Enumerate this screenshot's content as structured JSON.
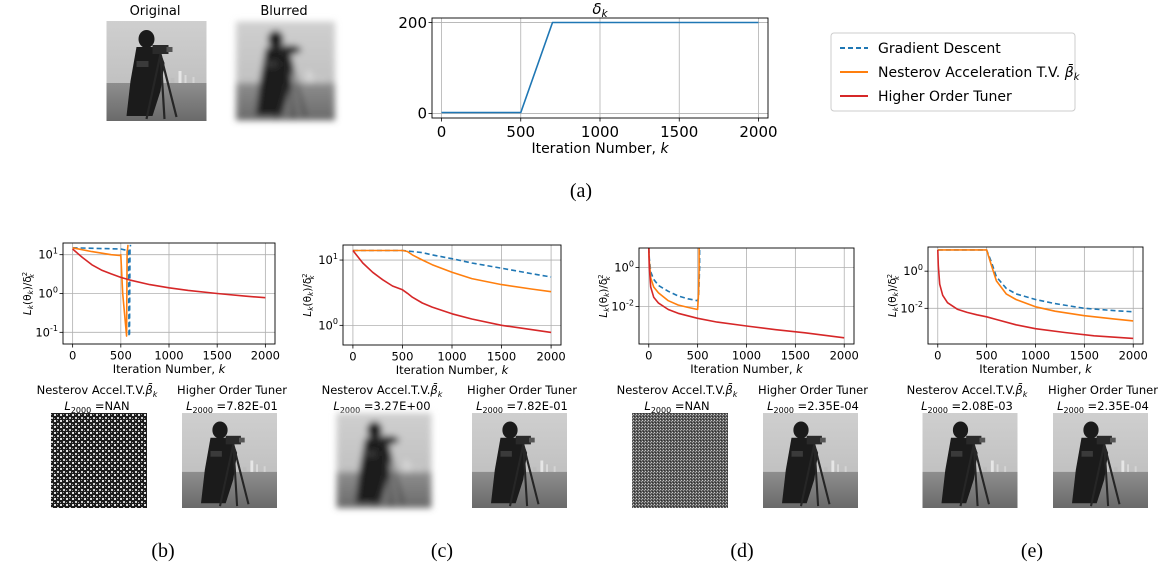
{
  "colors": {
    "gradient_descent": "#1f77b4",
    "nesterov": "#ff7f0e",
    "higher_order": "#d62728",
    "grid": "#b0b0b0",
    "axis": "#000000"
  },
  "top": {
    "original_title": "Original",
    "blurred_title": "Blurred",
    "panel_label": "(a)"
  },
  "legend": {
    "entries": [
      {
        "name": "Gradient Descent",
        "color": "#1f77b4",
        "style": "dashed"
      },
      {
        "name": "Nesterov Acceleration T.V.",
        "symbol": "β̄",
        "subscript": "k",
        "color": "#ff7f0e",
        "style": "solid"
      },
      {
        "name": "Higher Order Tuner",
        "color": "#d62728",
        "style": "solid"
      }
    ]
  },
  "panels": [
    {
      "label": "(b)",
      "left_title": "Nesterov Accel.T.V.",
      "left_L": "=NAN",
      "right_title": "Higher Order Tuner",
      "right_L": "=7.82E-01",
      "left_image": "noise"
    },
    {
      "label": "(c)",
      "left_title": "Nesterov Accel.T.V.",
      "left_L": "=3.27E+00",
      "right_title": "Higher Order Tuner",
      "right_L": "=7.82E-01",
      "left_image": "blurred"
    },
    {
      "label": "(d)",
      "left_title": "Nesterov Accel.T.V.",
      "left_L": "=NAN",
      "right_title": "Higher Order Tuner",
      "right_L": "=2.35E-04",
      "left_image": "noise"
    },
    {
      "label": "(e)",
      "left_title": "Nesterov Accel.T.V.",
      "left_L": "=2.08E-03",
      "right_title": "Higher Order Tuner",
      "right_L": "=2.35E-04",
      "left_image": "sharp"
    }
  ],
  "chart_data": [
    {
      "id": "a",
      "type": "line",
      "title": "δ",
      "title_sub": "k",
      "xlabel": "Iteration Number, ",
      "xlabel_var": "k",
      "xlim": [
        -60,
        2060
      ],
      "ylim": [
        -10,
        210
      ],
      "xticks": [
        0,
        500,
        1000,
        1500,
        2000
      ],
      "yticks": [
        0,
        200
      ],
      "log_y": false,
      "grid": true,
      "series": [
        {
          "x": [
            0,
            500,
            700,
            2000
          ],
          "y": [
            2,
            2,
            200,
            200
          ],
          "color": "#1f77b4",
          "style": "solid"
        }
      ]
    },
    {
      "id": "b",
      "type": "line",
      "xlabel": "Iteration Number, ",
      "xlabel_var": "k",
      "xlim": [
        -100,
        2100
      ],
      "ylim": [
        0.05,
        20
      ],
      "log_y": true,
      "xticks": [
        0,
        500,
        1000,
        1500,
        2000
      ],
      "yticks": [
        {
          "v": 10,
          "e": "1"
        },
        {
          "v": 1,
          "e": "0"
        },
        {
          "v": 0.1,
          "e": "-1"
        }
      ],
      "grid": true,
      "series": [
        {
          "name": "Gradient Descent",
          "color": "#1f77b4",
          "style": "dashed",
          "x": [
            0,
            500,
            560,
            580,
            585,
            590,
            595,
            600
          ],
          "y": [
            15,
            14,
            13,
            13,
            0.08,
            0.08,
            13,
            18
          ]
        },
        {
          "name": "Nesterov Acceleration T.V.",
          "color": "#ff7f0e",
          "style": "solid",
          "x": [
            0,
            200,
            400,
            490,
            500,
            520,
            560,
            565,
            570,
            575
          ],
          "y": [
            15,
            12,
            10,
            9.5,
            10,
            1,
            0.08,
            12,
            14,
            18
          ]
        },
        {
          "name": "Higher Order Tuner",
          "color": "#d62728",
          "style": "solid",
          "x": [
            0,
            100,
            200,
            300,
            400,
            500,
            600,
            800,
            1000,
            1200,
            1500,
            1800,
            2000
          ],
          "y": [
            14,
            8.5,
            5.5,
            4,
            3.2,
            2.6,
            2.2,
            1.7,
            1.4,
            1.2,
            1,
            0.85,
            0.78
          ]
        }
      ]
    },
    {
      "id": "c",
      "type": "line",
      "xlabel": "Iteration Number, ",
      "xlabel_var": "k",
      "xlim": [
        -100,
        2100
      ],
      "ylim": [
        0.5,
        17
      ],
      "log_y": true,
      "xticks": [
        0,
        500,
        1000,
        1500,
        2000
      ],
      "yticks": [
        {
          "v": 10,
          "e": "1"
        },
        {
          "v": 1,
          "e": "0"
        }
      ],
      "grid": true,
      "series": [
        {
          "name": "Gradient Descent",
          "color": "#1f77b4",
          "style": "dashed",
          "x": [
            0,
            200,
            400,
            500,
            600,
            700,
            800,
            1000,
            1200,
            1500,
            1800,
            2000
          ],
          "y": [
            14,
            14,
            14,
            14,
            13.5,
            13,
            12,
            10.5,
            9,
            7.5,
            6.2,
            5.5
          ]
        },
        {
          "name": "Nesterov Acceleration T.V.",
          "color": "#ff7f0e",
          "style": "solid",
          "x": [
            0,
            200,
            400,
            500,
            550,
            600,
            700,
            800,
            1000,
            1200,
            1500,
            1800,
            2000
          ],
          "y": [
            14,
            14,
            14,
            14,
            13.5,
            12,
            10,
            8.5,
            6.5,
            5.2,
            4.2,
            3.6,
            3.27
          ]
        },
        {
          "name": "Higher Order Tuner",
          "color": "#d62728",
          "style": "solid",
          "x": [
            0,
            100,
            200,
            300,
            400,
            500,
            550,
            600,
            700,
            800,
            1000,
            1200,
            1500,
            1800,
            2000
          ],
          "y": [
            14,
            9,
            6.5,
            5,
            4,
            3.5,
            3.1,
            2.7,
            2.2,
            1.9,
            1.5,
            1.25,
            1,
            0.86,
            0.78
          ]
        }
      ]
    },
    {
      "id": "d",
      "type": "line",
      "xlabel": "Iteration Number, ",
      "xlabel_var": "k",
      "xlim": [
        -100,
        2100
      ],
      "ylim": [
        0.00012,
        10
      ],
      "log_y": true,
      "xticks": [
        0,
        500,
        1000,
        1500,
        2000
      ],
      "yticks": [
        {
          "v": 1,
          "e": "0"
        },
        {
          "v": 0.01,
          "e": "-2"
        }
      ],
      "grid": true,
      "series": [
        {
          "name": "Gradient Descent",
          "color": "#1f77b4",
          "style": "dashed",
          "x": [
            0,
            5,
            20,
            50,
            100,
            200,
            300,
            400,
            500,
            510,
            520,
            520
          ],
          "y": [
            10,
            3,
            0.6,
            0.25,
            0.12,
            0.06,
            0.035,
            0.025,
            0.02,
            0.03,
            1,
            10
          ]
        },
        {
          "name": "Nesterov Acceleration T.V.",
          "color": "#ff7f0e",
          "style": "solid",
          "x": [
            0,
            5,
            20,
            50,
            100,
            200,
            300,
            400,
            500,
            510,
            515,
            515
          ],
          "y": [
            10,
            2,
            0.3,
            0.1,
            0.05,
            0.02,
            0.012,
            0.009,
            0.007,
            0.05,
            1,
            10
          ]
        },
        {
          "name": "Higher Order Tuner",
          "color": "#d62728",
          "style": "solid",
          "x": [
            0,
            5,
            20,
            50,
            100,
            200,
            300,
            500,
            700,
            1000,
            1300,
            1600,
            2000
          ],
          "y": [
            10,
            1,
            0.1,
            0.03,
            0.015,
            0.007,
            0.0045,
            0.0025,
            0.0016,
            0.001,
            0.00065,
            0.00045,
            0.00025
          ]
        }
      ]
    },
    {
      "id": "e",
      "type": "line",
      "xlabel": "Iteration Number, ",
      "xlabel_var": "k",
      "xlim": [
        -100,
        2100
      ],
      "ylim": [
        0.00012,
        20
      ],
      "log_y": true,
      "xticks": [
        0,
        500,
        1000,
        1500,
        2000
      ],
      "yticks": [
        {
          "v": 1,
          "e": "0"
        },
        {
          "v": 0.01,
          "e": "-2"
        }
      ],
      "grid": true,
      "series": [
        {
          "name": "Gradient Descent",
          "color": "#1f77b4",
          "style": "dashed",
          "x": [
            0,
            200,
            400,
            500,
            550,
            600,
            700,
            800,
            1000,
            1200,
            1500,
            1800,
            2000
          ],
          "y": [
            14,
            14,
            14,
            14,
            3,
            0.5,
            0.12,
            0.06,
            0.03,
            0.018,
            0.01,
            0.0075,
            0.0065
          ]
        },
        {
          "name": "Nesterov Acceleration T.V.",
          "color": "#ff7f0e",
          "style": "solid",
          "x": [
            0,
            200,
            400,
            500,
            550,
            600,
            700,
            800,
            1000,
            1200,
            1500,
            1800,
            2000
          ],
          "y": [
            14,
            14,
            14,
            14,
            2,
            0.3,
            0.06,
            0.03,
            0.012,
            0.007,
            0.004,
            0.0027,
            0.0021
          ]
        },
        {
          "name": "Higher Order Tuner",
          "color": "#d62728",
          "style": "solid",
          "x": [
            0,
            5,
            20,
            50,
            100,
            200,
            300,
            400,
            500,
            600,
            800,
            1000,
            1300,
            1600,
            2000
          ],
          "y": [
            14,
            2,
            0.2,
            0.05,
            0.02,
            0.009,
            0.006,
            0.0045,
            0.0035,
            0.0025,
            0.0013,
            0.0008,
            0.0005,
            0.00033,
            0.00024
          ]
        }
      ]
    }
  ]
}
